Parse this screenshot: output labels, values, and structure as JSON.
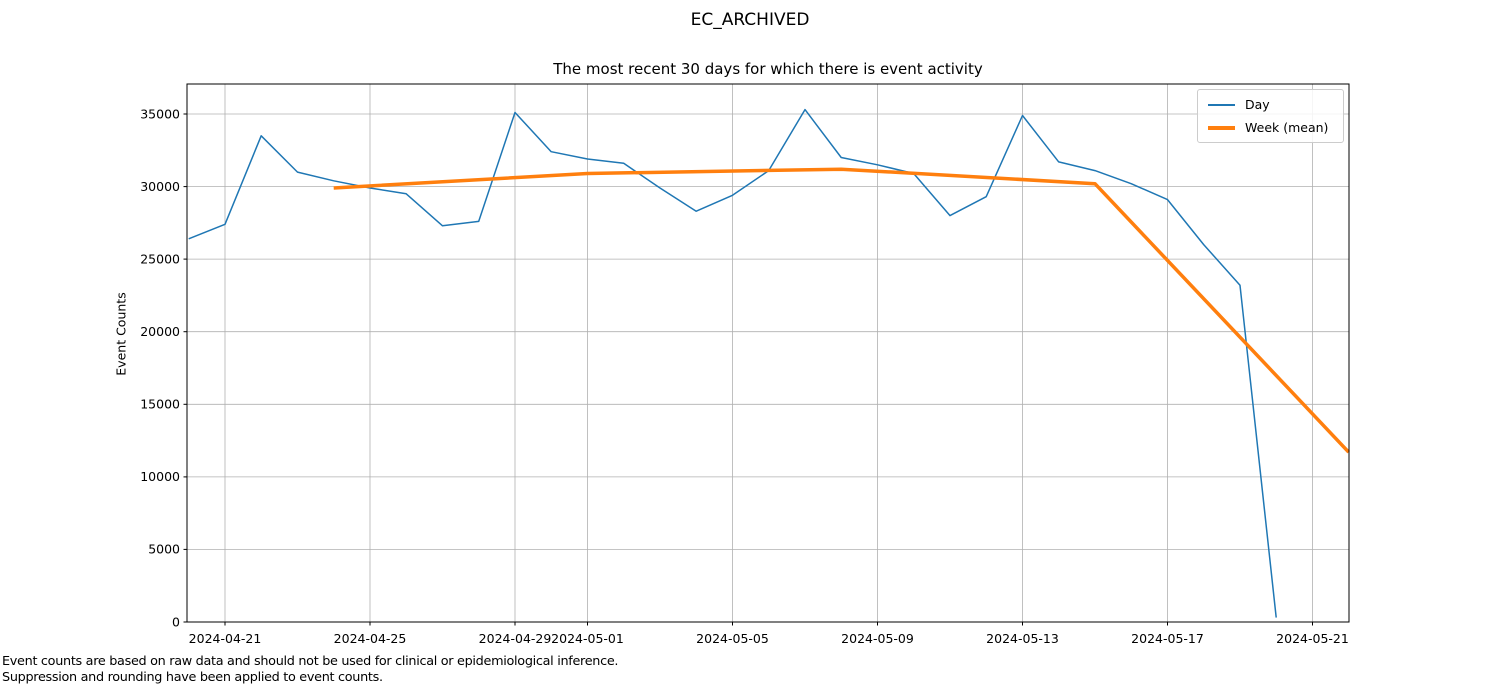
{
  "figure_title": "EC_ARCHIVED",
  "footer": {
    "line1": "Event counts are based on raw data and should not be used for clinical or epidemiological inference.",
    "line2": "Suppression and rounding have been applied to event counts."
  },
  "chart_data": {
    "type": "line",
    "title": "EC_ARCHIVED",
    "subtitle": "The most recent 30 days for which there is event activity",
    "xlabel": "",
    "ylabel": "Event Counts",
    "grid": true,
    "legend_position": "upper right",
    "x_start": "2024-04-20",
    "xlim_days": [
      -0.048,
      32.007
    ],
    "ylim": [
      0,
      37067
    ],
    "y_ticks": [
      0,
      5000,
      10000,
      15000,
      20000,
      25000,
      30000,
      35000
    ],
    "x_ticks": [
      "2024-04-21",
      "2024-04-25",
      "2024-04-29",
      "2024-05-01",
      "2024-05-05",
      "2024-05-09",
      "2024-05-13",
      "2024-05-17",
      "2024-05-21"
    ],
    "colors": {
      "grid": "#b0b0b0",
      "spine": "#000000"
    },
    "series": [
      {
        "name": "Day",
        "color": "#1f77b4",
        "line_width": 1.5,
        "dates": [
          "2024-04-20",
          "2024-04-21",
          "2024-04-22",
          "2024-04-23",
          "2024-04-24",
          "2024-04-25",
          "2024-04-26",
          "2024-04-27",
          "2024-04-28",
          "2024-04-29",
          "2024-04-30",
          "2024-05-01",
          "2024-05-02",
          "2024-05-03",
          "2024-05-04",
          "2024-05-05",
          "2024-05-06",
          "2024-05-07",
          "2024-05-08",
          "2024-05-09",
          "2024-05-10",
          "2024-05-11",
          "2024-05-12",
          "2024-05-13",
          "2024-05-14",
          "2024-05-15",
          "2024-05-16",
          "2024-05-17",
          "2024-05-18",
          "2024-05-19",
          "2024-05-20"
        ],
        "values": [
          26400,
          27400,
          33500,
          31000,
          30400,
          29900,
          29500,
          27300,
          27600,
          35100,
          32400,
          31900,
          31600,
          29900,
          28300,
          29400,
          31100,
          35300,
          32000,
          31500,
          30900,
          28000,
          29300,
          34900,
          31700,
          31100,
          30200,
          29100,
          26000,
          23200,
          300
        ]
      },
      {
        "name": "Week (mean)",
        "color": "#ff7f0e",
        "line_width": 3.5,
        "dates": [
          "2024-04-24",
          "2024-05-01",
          "2024-05-08",
          "2024-05-15",
          "2024-05-22"
        ],
        "values": [
          29900,
          30900,
          31200,
          30200,
          11700
        ]
      }
    ]
  }
}
